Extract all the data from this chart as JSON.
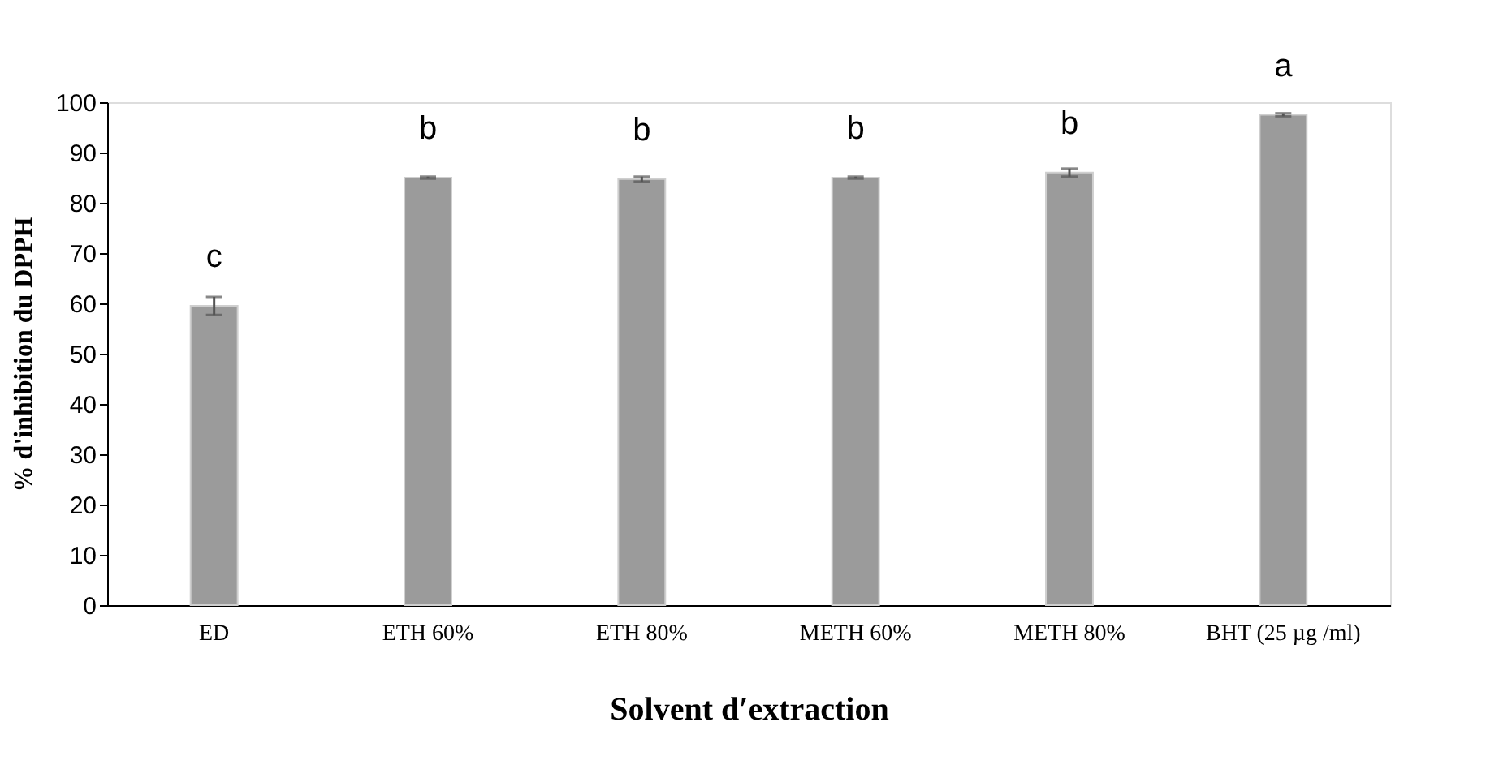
{
  "chart_data": {
    "type": "bar",
    "categories": [
      "ED",
      "ETH 60%",
      "ETH 80%",
      "METH 60%",
      "METH 80%",
      "BHT (25 µg /ml)"
    ],
    "values": [
      59.5,
      85,
      84.7,
      85,
      86,
      97.5
    ],
    "errors": [
      1.8,
      0.2,
      0.5,
      0.2,
      0.8,
      0.3
    ],
    "color": "#9b9b9b",
    "xlabel": "Solvent d′extraction",
    "ylabel": "% d'inhibition du  DPPH",
    "ylim": [
      0,
      100
    ],
    "yticks": [
      0,
      10,
      20,
      30,
      40,
      50,
      60,
      70,
      80,
      90,
      100
    ],
    "grid": false,
    "annotations": [
      {
        "text": "c",
        "x": "ED",
        "y": 59.5
      },
      {
        "text": "b",
        "x": "ETH 60%",
        "y": 85
      },
      {
        "text": "b",
        "x": "ETH 80%",
        "y": 84.7
      },
      {
        "text": "b",
        "x": "METH 60%",
        "y": 85
      },
      {
        "text": "b",
        "x": "METH 80%",
        "y": 86
      },
      {
        "text": "a",
        "x": "BHT (25 µg /ml)",
        "y": 97.5
      }
    ]
  }
}
